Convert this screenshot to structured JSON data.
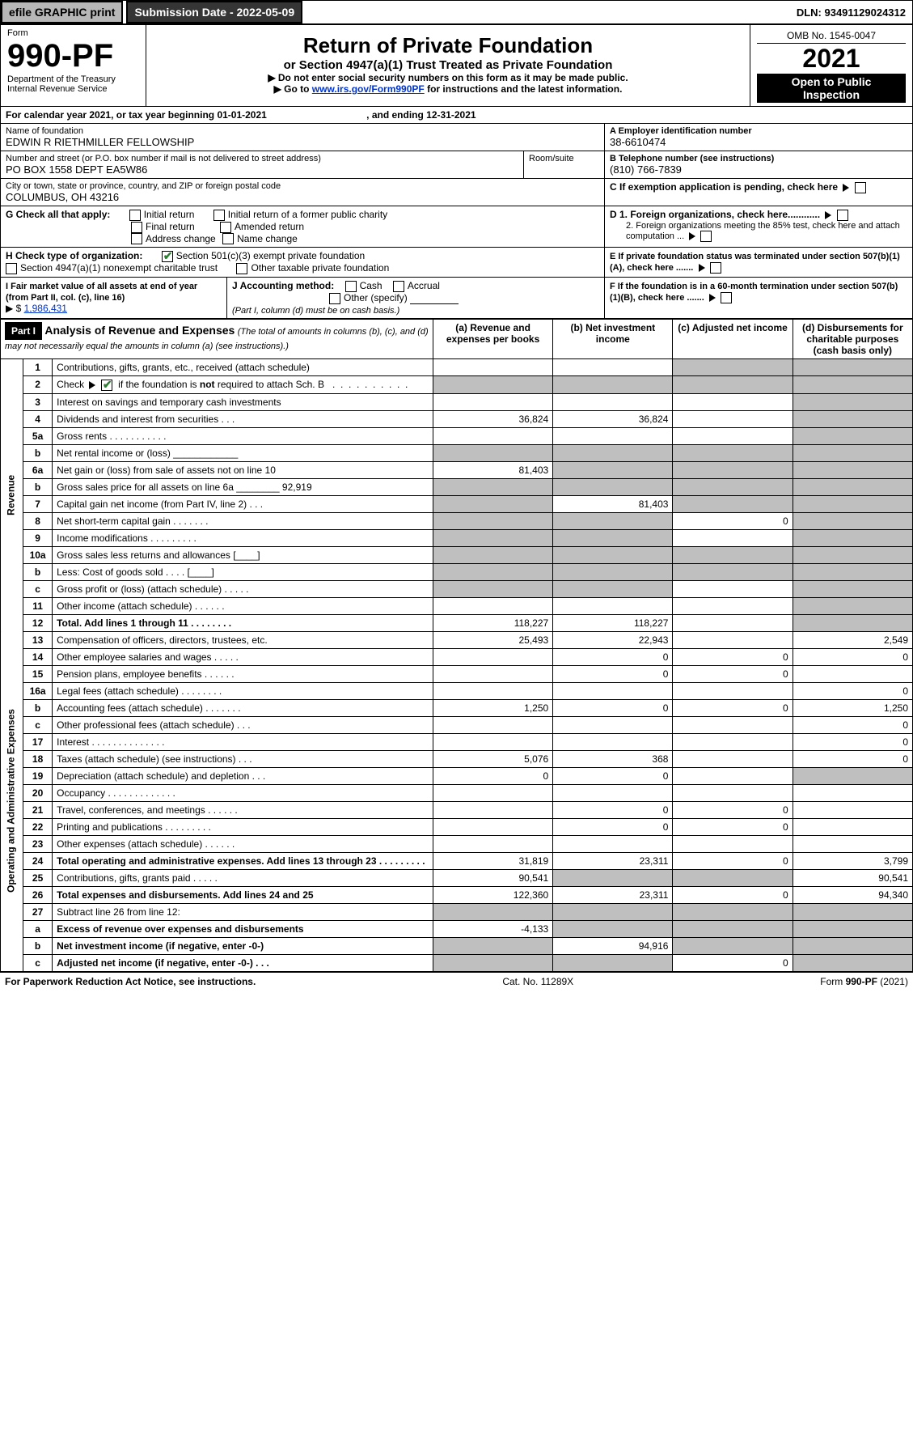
{
  "topbar": {
    "efile": "efile GRAPHIC print",
    "submission": "Submission Date - 2022-05-09",
    "dln": "DLN: 93491129024312"
  },
  "header": {
    "form_word": "Form",
    "form_no": "990-PF",
    "dept": "Department of the Treasury",
    "irs": "Internal Revenue Service",
    "title": "Return of Private Foundation",
    "subtitle": "or Section 4947(a)(1) Trust Treated as Private Foundation",
    "note1": "▶ Do not enter social security numbers on this form as it may be made public.",
    "note2_pre": "▶ Go to ",
    "note2_link": "www.irs.gov/Form990PF",
    "note2_post": " for instructions and the latest information.",
    "omb": "OMB No. 1545-0047",
    "year": "2021",
    "open": "Open to Public Inspection"
  },
  "calendar": {
    "text": "For calendar year 2021, or tax year beginning 01-01-2021",
    "ending": ", and ending 12-31-2021"
  },
  "foundation": {
    "name_label": "Name of foundation",
    "name": "EDWIN R RIETHMILLER FELLOWSHIP",
    "ein_label": "A Employer identification number",
    "ein": "38-6610474",
    "addr_label": "Number and street (or P.O. box number if mail is not delivered to street address)",
    "addr": "PO BOX 1558 DEPT EA5W86",
    "room_label": "Room/suite",
    "phone_label": "B Telephone number (see instructions)",
    "phone": "(810) 766-7839",
    "city_label": "City or town, state or province, country, and ZIP or foreign postal code",
    "city": "COLUMBUS, OH  43216",
    "c_text": "C If exemption application is pending, check here"
  },
  "g_block": {
    "label": "G Check all that apply:",
    "initial": "Initial return",
    "final": "Final return",
    "address": "Address change",
    "initial_former": "Initial return of a former public charity",
    "amended": "Amended return",
    "name_change": "Name change"
  },
  "d_block": {
    "d1": "D 1. Foreign organizations, check here............",
    "d2": "2. Foreign organizations meeting the 85% test, check here and attach computation ..."
  },
  "h_block": {
    "label": "H Check type of organization:",
    "opt1": "Section 501(c)(3) exempt private foundation",
    "opt2": "Section 4947(a)(1) nonexempt charitable trust",
    "opt3": "Other taxable private foundation"
  },
  "e_block": {
    "text": "E  If private foundation status was terminated under section 507(b)(1)(A), check here ......."
  },
  "i_block": {
    "label": "I Fair market value of all assets at end of year (from Part II, col. (c), line 16)",
    "amount_prefix": "▶ $",
    "amount": "1,986,431"
  },
  "j_block": {
    "label": "J Accounting method:",
    "cash": "Cash",
    "accrual": "Accrual",
    "other": "Other (specify)",
    "note": "(Part I, column (d) must be on cash basis.)"
  },
  "f_block": {
    "text": "F  If the foundation is in a 60-month termination under section 507(b)(1)(B), check here ......."
  },
  "part1": {
    "label": "Part I",
    "title": "Analysis of Revenue and Expenses",
    "title_note": " (The total of amounts in columns (b), (c), and (d) may not necessarily equal the amounts in column (a) (see instructions).)",
    "col_a": "(a)  Revenue and expenses per books",
    "col_b": "(b)  Net investment income",
    "col_c": "(c)  Adjusted net income",
    "col_d": "(d)  Disbursements for charitable purposes (cash basis only)"
  },
  "sections": {
    "revenue": "Revenue",
    "opadmin": "Operating and Administrative Expenses"
  },
  "lines": [
    {
      "n": "1",
      "d": "Contributions, gifts, grants, etc., received (attach schedule)",
      "a": "",
      "b": "",
      "c": "s",
      "dd": "s"
    },
    {
      "n": "2",
      "d": "Check ▶ ☑ if the foundation is not required to attach Sch. B   . . . . . . . . . . . . . . . . . .",
      "a": "s",
      "b": "s",
      "c": "s",
      "dd": "s"
    },
    {
      "n": "3",
      "d": "Interest on savings and temporary cash investments",
      "a": "",
      "b": "",
      "c": "",
      "dd": "s"
    },
    {
      "n": "4",
      "d": "Dividends and interest from securities   .  .  .",
      "a": "36,824",
      "b": "36,824",
      "c": "",
      "dd": "s"
    },
    {
      "n": "5a",
      "d": "Gross rents   .  .  .  .  .  .  .  .  .  .  .",
      "a": "",
      "b": "",
      "c": "",
      "dd": "s"
    },
    {
      "n": "b",
      "d": "Net rental income or (loss)  ____________",
      "a": "s",
      "b": "s",
      "c": "s",
      "dd": "s"
    },
    {
      "n": "6a",
      "d": "Net gain or (loss) from sale of assets not on line 10",
      "a": "81,403",
      "b": "s",
      "c": "s",
      "dd": "s"
    },
    {
      "n": "b",
      "d": "Gross sales price for all assets on line 6a ________ 92,919",
      "a": "s",
      "b": "s",
      "c": "s",
      "dd": "s"
    },
    {
      "n": "7",
      "d": "Capital gain net income (from Part IV, line 2)   .  .  .",
      "a": "s",
      "b": "81,403",
      "c": "s",
      "dd": "s"
    },
    {
      "n": "8",
      "d": "Net short-term capital gain   .  .  .  .  .  .  .",
      "a": "s",
      "b": "s",
      "c": "0",
      "dd": "s"
    },
    {
      "n": "9",
      "d": "Income modifications  .  .  .  .  .  .  .  .  .",
      "a": "s",
      "b": "s",
      "c": "",
      "dd": "s"
    },
    {
      "n": "10a",
      "d": "Gross sales less returns and allowances  [____]",
      "a": "s",
      "b": "s",
      "c": "s",
      "dd": "s"
    },
    {
      "n": "b",
      "d": "Less: Cost of goods sold   .  .  .  .    [____]",
      "a": "s",
      "b": "s",
      "c": "s",
      "dd": "s"
    },
    {
      "n": "c",
      "d": "Gross profit or (loss) (attach schedule)   .  .  .  .  .",
      "a": "s",
      "b": "s",
      "c": "",
      "dd": "s"
    },
    {
      "n": "11",
      "d": "Other income (attach schedule)   .  .  .  .  .  .",
      "a": "",
      "b": "",
      "c": "",
      "dd": "s"
    },
    {
      "n": "12",
      "d": "Total. Add lines 1 through 11   .  .  .  .  .  .  .  .",
      "a": "118,227",
      "b": "118,227",
      "c": "",
      "dd": "s",
      "bold": true
    },
    {
      "n": "13",
      "d": "Compensation of officers, directors, trustees, etc.",
      "a": "25,493",
      "b": "22,943",
      "c": "",
      "dd": "2,549"
    },
    {
      "n": "14",
      "d": "Other employee salaries and wages   .  .  .  .  .",
      "a": "",
      "b": "0",
      "c": "0",
      "dd": "0"
    },
    {
      "n": "15",
      "d": "Pension plans, employee benefits   .  .  .  .  .  .",
      "a": "",
      "b": "0",
      "c": "0",
      "dd": ""
    },
    {
      "n": "16a",
      "d": "Legal fees (attach schedule)  .  .  .  .  .  .  .  .",
      "a": "",
      "b": "",
      "c": "",
      "dd": "0"
    },
    {
      "n": "b",
      "d": "Accounting fees (attach schedule)  .  .  .  .  .  .  .",
      "a": "1,250",
      "b": "0",
      "c": "0",
      "dd": "1,250"
    },
    {
      "n": "c",
      "d": "Other professional fees (attach schedule)   .  .  .",
      "a": "",
      "b": "",
      "c": "",
      "dd": "0"
    },
    {
      "n": "17",
      "d": "Interest  .  .  .  .  .  .  .  .  .  .  .  .  .  .",
      "a": "",
      "b": "",
      "c": "",
      "dd": "0"
    },
    {
      "n": "18",
      "d": "Taxes (attach schedule) (see instructions)   .  .  .",
      "a": "5,076",
      "b": "368",
      "c": "",
      "dd": "0"
    },
    {
      "n": "19",
      "d": "Depreciation (attach schedule) and depletion   .  .  .",
      "a": "0",
      "b": "0",
      "c": "",
      "dd": "s"
    },
    {
      "n": "20",
      "d": "Occupancy  .  .  .  .  .  .  .  .  .  .  .  .  .",
      "a": "",
      "b": "",
      "c": "",
      "dd": ""
    },
    {
      "n": "21",
      "d": "Travel, conferences, and meetings  .  .  .  .  .  .",
      "a": "",
      "b": "0",
      "c": "0",
      "dd": ""
    },
    {
      "n": "22",
      "d": "Printing and publications  .  .  .  .  .  .  .  .  .",
      "a": "",
      "b": "0",
      "c": "0",
      "dd": ""
    },
    {
      "n": "23",
      "d": "Other expenses (attach schedule)  .  .  .  .  .  .",
      "a": "",
      "b": "",
      "c": "",
      "dd": ""
    },
    {
      "n": "24",
      "d": "Total operating and administrative expenses. Add lines 13 through 23   .  .  .  .  .  .  .  .  .",
      "a": "31,819",
      "b": "23,311",
      "c": "0",
      "dd": "3,799",
      "bold": true
    },
    {
      "n": "25",
      "d": "Contributions, gifts, grants paid   .  .  .  .  .",
      "a": "90,541",
      "b": "s",
      "c": "s",
      "dd": "90,541"
    },
    {
      "n": "26",
      "d": "Total expenses and disbursements. Add lines 24 and 25",
      "a": "122,360",
      "b": "23,311",
      "c": "0",
      "dd": "94,340",
      "bold": true
    },
    {
      "n": "27",
      "d": "Subtract line 26 from line 12:",
      "a": "s",
      "b": "s",
      "c": "s",
      "dd": "s"
    },
    {
      "n": "a",
      "d": "Excess of revenue over expenses and disbursements",
      "a": "-4,133",
      "b": "s",
      "c": "s",
      "dd": "s",
      "bold": true
    },
    {
      "n": "b",
      "d": "Net investment income (if negative, enter -0-)",
      "a": "s",
      "b": "94,916",
      "c": "s",
      "dd": "s",
      "bold": true
    },
    {
      "n": "c",
      "d": "Adjusted net income (if negative, enter -0-)   .  .  .",
      "a": "s",
      "b": "s",
      "c": "0",
      "dd": "s",
      "bold": true
    }
  ],
  "footer": {
    "left": "For Paperwork Reduction Act Notice, see instructions.",
    "mid": "Cat. No. 11289X",
    "right": "Form 990-PF (2021)"
  },
  "colors": {
    "shade": "#bfbfbf",
    "link": "#0033cc",
    "check": "#2e7d32"
  }
}
